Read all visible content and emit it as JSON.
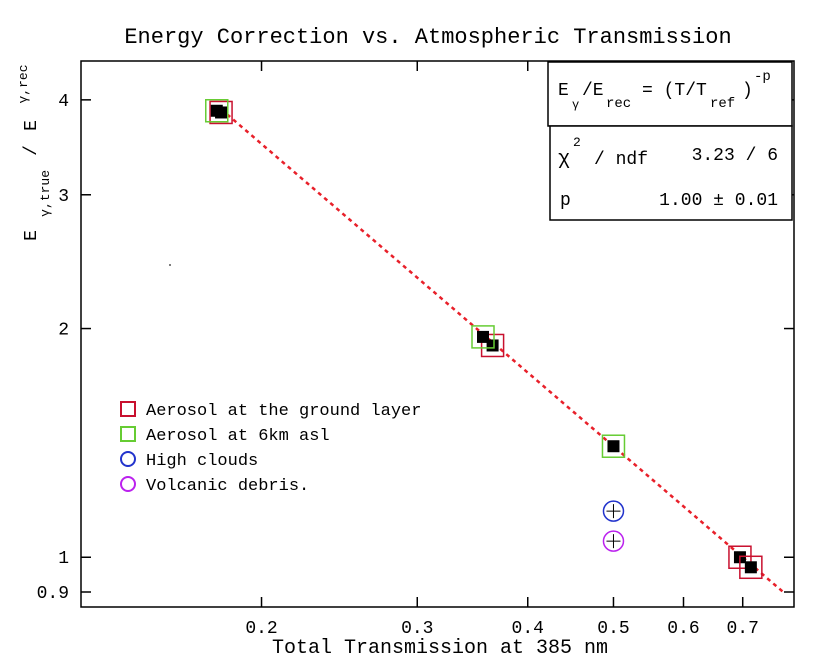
{
  "chart_data": {
    "type": "scatter",
    "title": "Energy Correction vs. Atmospheric Transmission",
    "xlabel": "Total Transmission at 385 nm",
    "ylabel": {
      "e1": "E",
      "sub1": "γ,true",
      "slash": "/",
      "e2": "E",
      "sub2": "γ,rec"
    },
    "x_scale": "log",
    "y_scale": "log",
    "xlim": [
      0.125,
      0.8
    ],
    "ylim": [
      0.86,
      4.5
    ],
    "x_ticks": [
      {
        "value": 0.2,
        "label": "0.2"
      },
      {
        "value": 0.3,
        "label": "0.3"
      },
      {
        "value": 0.4,
        "label": "0.4"
      },
      {
        "value": 0.5,
        "label": "0.5"
      },
      {
        "value": 0.6,
        "label": "0.6"
      },
      {
        "value": 0.7,
        "label": "0.7"
      }
    ],
    "y_ticks": [
      {
        "value": 0.9,
        "label": "0.9"
      },
      {
        "value": 1,
        "label": "1"
      },
      {
        "value": 2,
        "label": "2"
      },
      {
        "value": 3,
        "label": "3"
      },
      {
        "value": 4,
        "label": "4"
      }
    ],
    "fit": {
      "function": "power law",
      "p": 1.0,
      "x_range": [
        0.18,
        0.78
      ],
      "color": "#e8202a"
    },
    "series": [
      {
        "name": "Aerosol at the ground layer",
        "marker": "square",
        "color": "#c8102e",
        "points": [
          {
            "x": 0.18,
            "y": 3.85
          },
          {
            "x": 0.365,
            "y": 1.9
          },
          {
            "x": 0.695,
            "y": 1.0
          },
          {
            "x": 0.715,
            "y": 0.97
          }
        ]
      },
      {
        "name": "Aerosol at 6km asl",
        "marker": "square",
        "color": "#66cc33",
        "points": [
          {
            "x": 0.178,
            "y": 3.87
          },
          {
            "x": 0.356,
            "y": 1.95
          },
          {
            "x": 0.5,
            "y": 1.4
          }
        ]
      },
      {
        "name": "High clouds",
        "marker": "circle",
        "color": "#2233cc",
        "points": [
          {
            "x": 0.5,
            "y": 1.15
          }
        ]
      },
      {
        "name": "Volcanic debris.",
        "marker": "circle",
        "color": "#bb22ee",
        "points": [
          {
            "x": 0.5,
            "y": 1.05
          }
        ]
      }
    ],
    "stats_box": {
      "formula": {
        "e1": "E",
        "sub1": "γ",
        "slash": "/E",
        "sub2": "rec",
        "eq": "= (T/T",
        "sub3": "ref",
        "close": ")",
        "sup": "-p"
      },
      "chi_symbol": "χ",
      "chi_sup": "2",
      "chi_label": "/ ndf",
      "chi_value": "3.23 / 6",
      "p_label": "p",
      "p_value": "1.00 ± 0.01"
    },
    "legend_position": "left"
  }
}
